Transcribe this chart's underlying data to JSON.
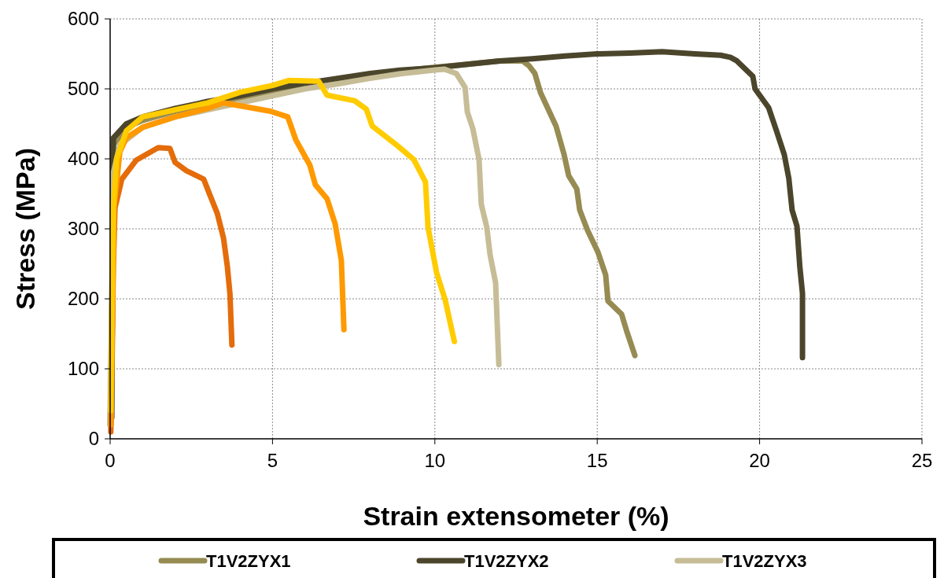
{
  "chart_data": {
    "type": "line",
    "xlabel": "Strain extensometer (%)",
    "ylabel": "Stress (MPa)",
    "xlim": [
      0,
      25
    ],
    "ylim": [
      0,
      600
    ],
    "xticks": [
      0,
      5,
      10,
      15,
      20,
      25
    ],
    "yticks": [
      0,
      100,
      200,
      300,
      400,
      500,
      600
    ],
    "grid": true,
    "legend": "bottom",
    "marker": "none",
    "line_style": "solid",
    "series": [
      {
        "name": "T1V2ZYX1",
        "color": "#968b52",
        "x": [
          0,
          0.05,
          0.1,
          0.5,
          1,
          2,
          3,
          4,
          5,
          6,
          7,
          8,
          9,
          10,
          11,
          12,
          12.7,
          12.9,
          13.08,
          13.25,
          13.73,
          13.98,
          14.12,
          14.37,
          14.46,
          14.7,
          15.02,
          15.26,
          15.33,
          15.75,
          15.92,
          16.16
        ],
        "values": [
          20,
          200,
          420,
          445,
          455,
          468,
          478,
          487,
          495,
          505,
          513,
          520,
          526,
          531,
          535,
          540,
          540,
          533,
          522,
          495,
          447,
          406,
          376,
          357,
          327,
          298,
          267,
          234,
          197,
          178,
          152,
          119
        ]
      },
      {
        "name": "T1V2ZYX2",
        "color": "#4b452c",
        "x": [
          0.05,
          0.08,
          0.1,
          0.5,
          1,
          2,
          3,
          4,
          5,
          6,
          7,
          8,
          9,
          10,
          11,
          12,
          13,
          14,
          15,
          16,
          17,
          18,
          18.8,
          19.1,
          19.3,
          19.79,
          19.86,
          20.28,
          20.52,
          20.76,
          20.9,
          21.0,
          21.15,
          21.24,
          21.32,
          21.32
        ],
        "values": [
          30,
          250,
          430,
          450,
          460,
          472,
          482,
          490,
          500,
          508,
          515,
          522,
          527,
          530,
          535,
          540,
          543,
          547,
          550,
          551,
          553,
          550,
          548,
          545,
          540,
          518,
          500,
          473,
          440,
          406,
          372,
          327,
          304,
          245,
          208,
          116
        ]
      },
      {
        "name": "T1V2ZYX3",
        "color": "#c6bd97",
        "x": [
          0.03,
          0.06,
          0.1,
          0.3,
          1,
          2,
          3,
          4,
          5,
          6,
          7,
          8,
          9,
          10,
          10.3,
          10.66,
          10.93,
          11.0,
          11.17,
          11.36,
          11.43,
          11.6,
          11.7,
          11.87,
          11.97
        ],
        "values": [
          20,
          200,
          380,
          420,
          445,
          460,
          470,
          480,
          490,
          500,
          507,
          515,
          522,
          527,
          528,
          522,
          502,
          467,
          443,
          399,
          335,
          302,
          263,
          223,
          106
        ]
      },
      {
        "color": "#e46c0a",
        "x": [
          0.02,
          0.05,
          0.1,
          0.15,
          0.36,
          0.8,
          1.48,
          1.84,
          2.0,
          2.35,
          2.88,
          3.05,
          3.3,
          3.49,
          3.61,
          3.69,
          3.75
        ],
        "values": [
          10,
          100,
          250,
          330,
          371,
          398,
          416,
          415,
          395,
          383,
          371,
          351,
          322,
          287,
          246,
          207,
          134
        ]
      },
      {
        "color": "#ff9900",
        "x": [
          0.02,
          0.06,
          0.12,
          0.3,
          0.5,
          1,
          2,
          3,
          3.49,
          4.94,
          5.47,
          5.72,
          6.15,
          6.32,
          6.68,
          6.93,
          7.12,
          7.2
        ],
        "values": [
          20,
          150,
          330,
          410,
          430,
          445,
          460,
          472,
          480,
          468,
          460,
          427,
          391,
          363,
          343,
          307,
          255,
          156
        ]
      },
      {
        "color": "#ffcc00",
        "x": [
          0.02,
          0.06,
          0.1,
          0.2,
          0.5,
          1,
          2,
          3,
          4,
          5,
          5.5,
          6.42,
          6.68,
          7.53,
          7.89,
          8.07,
          8.84,
          9.35,
          9.71,
          9.79,
          10.05,
          10.32,
          10.6
        ],
        "values": [
          40,
          200,
          330,
          400,
          440,
          460,
          470,
          480,
          495,
          505,
          512,
          511,
          491,
          483,
          471,
          447,
          419,
          399,
          367,
          302,
          238,
          198,
          139
        ]
      }
    ]
  }
}
